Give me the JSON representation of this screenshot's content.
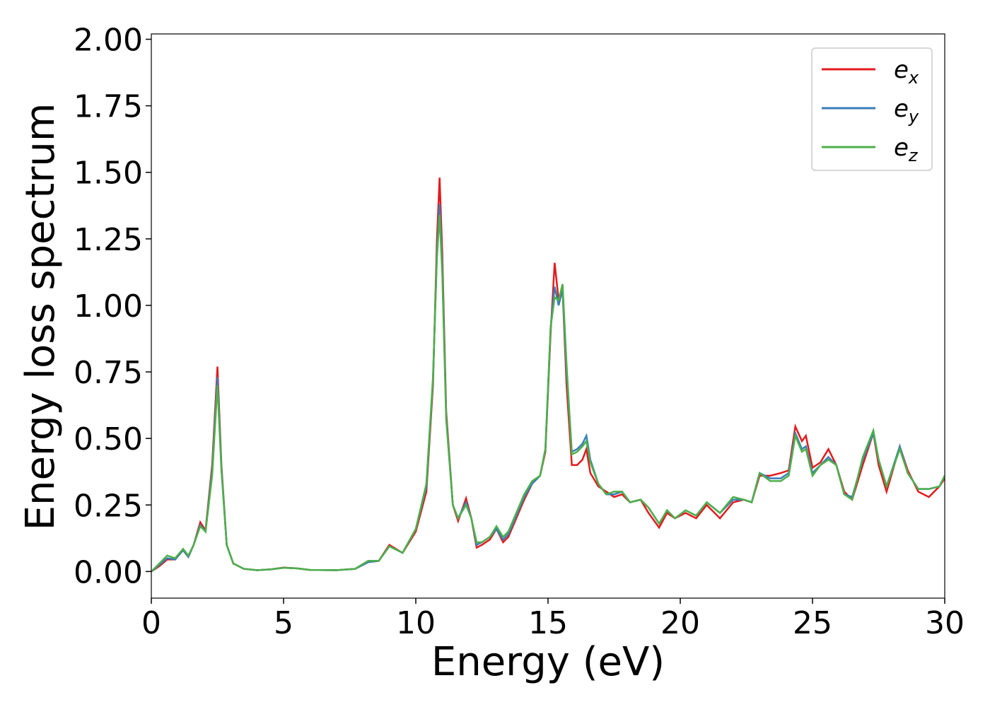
{
  "chart_data": {
    "type": "line",
    "x_label": "Energy (eV)",
    "y_label": "Energy loss spectrum",
    "xlim": [
      0,
      30
    ],
    "xticks": [
      0,
      5,
      10,
      15,
      20,
      25,
      30
    ],
    "ylim": [
      -0.1,
      2.02
    ],
    "yticks": [
      {
        "value": 0,
        "label": "0.00"
      },
      {
        "value": 0.25,
        "label": "0.25"
      },
      {
        "value": 0.5,
        "label": "0.50"
      },
      {
        "value": 0.75,
        "label": "0.75"
      },
      {
        "value": 1,
        "label": "1.00"
      },
      {
        "value": 1.25,
        "label": "1.25"
      },
      {
        "value": 1.5,
        "label": "1.50"
      },
      {
        "value": 1.75,
        "label": "1.75"
      },
      {
        "value": 2,
        "label": "2.00"
      }
    ],
    "legend": "upper right",
    "x": [
      0,
      0.3,
      0.6,
      0.9,
      1.2,
      1.4,
      1.6,
      1.85,
      2.05,
      2.3,
      2.5,
      2.65,
      2.85,
      3.1,
      3.5,
      4.0,
      4.5,
      5.0,
      5.5,
      6.0,
      7.0,
      7.7,
      8.2,
      8.6,
      9.0,
      9.5,
      10.0,
      10.4,
      10.65,
      10.8,
      10.9,
      11.0,
      11.15,
      11.4,
      11.6,
      11.9,
      12.1,
      12.3,
      12.5,
      12.8,
      13.05,
      13.3,
      13.5,
      13.8,
      14.1,
      14.4,
      14.7,
      14.9,
      15.1,
      15.25,
      15.4,
      15.55,
      15.7,
      15.9,
      16.1,
      16.3,
      16.45,
      16.6,
      16.9,
      17.2,
      17.5,
      17.8,
      18.1,
      18.5,
      18.8,
      19.2,
      19.5,
      19.8,
      20.2,
      20.6,
      21.0,
      21.5,
      22.0,
      22.4,
      22.7,
      23.0,
      23.4,
      23.8,
      24.1,
      24.35,
      24.6,
      24.75,
      25.0,
      25.3,
      25.6,
      25.9,
      26.2,
      26.5,
      26.9,
      27.3,
      27.5,
      27.8,
      28.3,
      28.6,
      29.0,
      29.4,
      29.8,
      30.0
    ],
    "series": [
      {
        "name": "ex",
        "color": "#e41a1c",
        "values": [
          0,
          0.02,
          0.045,
          0.045,
          0.08,
          0.055,
          0.1,
          0.185,
          0.155,
          0.4,
          0.77,
          0.4,
          0.1,
          0.03,
          0.01,
          0.005,
          0.008,
          0.015,
          0.012,
          0.006,
          0.005,
          0.01,
          0.035,
          0.04,
          0.1,
          0.07,
          0.15,
          0.3,
          0.7,
          1.25,
          1.48,
          1.2,
          0.6,
          0.25,
          0.19,
          0.275,
          0.2,
          0.09,
          0.1,
          0.12,
          0.16,
          0.11,
          0.13,
          0.2,
          0.27,
          0.33,
          0.36,
          0.45,
          0.9,
          1.16,
          1.02,
          1.06,
          0.7,
          0.4,
          0.4,
          0.42,
          0.46,
          0.37,
          0.32,
          0.3,
          0.28,
          0.29,
          0.26,
          0.27,
          0.22,
          0.165,
          0.22,
          0.2,
          0.22,
          0.2,
          0.25,
          0.2,
          0.26,
          0.27,
          0.26,
          0.36,
          0.36,
          0.37,
          0.38,
          0.545,
          0.49,
          0.51,
          0.39,
          0.41,
          0.46,
          0.4,
          0.3,
          0.27,
          0.4,
          0.52,
          0.4,
          0.3,
          0.47,
          0.38,
          0.3,
          0.28,
          0.32,
          0.35
        ]
      },
      {
        "name": "ey",
        "color": "#377eb8",
        "values": [
          0,
          0.025,
          0.05,
          0.045,
          0.08,
          0.055,
          0.1,
          0.175,
          0.15,
          0.38,
          0.73,
          0.39,
          0.1,
          0.03,
          0.01,
          0.005,
          0.008,
          0.014,
          0.012,
          0.006,
          0.005,
          0.01,
          0.035,
          0.04,
          0.095,
          0.07,
          0.16,
          0.32,
          0.72,
          1.2,
          1.38,
          1.15,
          0.58,
          0.25,
          0.2,
          0.26,
          0.2,
          0.1,
          0.11,
          0.13,
          0.16,
          0.12,
          0.14,
          0.21,
          0.28,
          0.33,
          0.36,
          0.46,
          0.92,
          1.07,
          1.0,
          1.06,
          0.75,
          0.45,
          0.46,
          0.48,
          0.51,
          0.42,
          0.33,
          0.29,
          0.29,
          0.3,
          0.26,
          0.27,
          0.24,
          0.18,
          0.23,
          0.2,
          0.23,
          0.21,
          0.26,
          0.22,
          0.27,
          0.27,
          0.26,
          0.37,
          0.35,
          0.35,
          0.37,
          0.52,
          0.46,
          0.47,
          0.37,
          0.4,
          0.43,
          0.4,
          0.29,
          0.28,
          0.42,
          0.52,
          0.42,
          0.32,
          0.47,
          0.37,
          0.31,
          0.31,
          0.32,
          0.36
        ]
      },
      {
        "name": "ez",
        "color": "#4daf4a",
        "values": [
          0,
          0.03,
          0.06,
          0.05,
          0.085,
          0.06,
          0.1,
          0.17,
          0.15,
          0.36,
          0.7,
          0.38,
          0.1,
          0.03,
          0.01,
          0.005,
          0.008,
          0.014,
          0.012,
          0.006,
          0.005,
          0.01,
          0.04,
          0.04,
          0.095,
          0.07,
          0.16,
          0.33,
          0.73,
          1.18,
          1.34,
          1.12,
          0.57,
          0.25,
          0.2,
          0.25,
          0.2,
          0.11,
          0.11,
          0.13,
          0.17,
          0.13,
          0.15,
          0.22,
          0.29,
          0.34,
          0.36,
          0.46,
          0.92,
          1.03,
          1.02,
          1.08,
          0.78,
          0.44,
          0.45,
          0.47,
          0.49,
          0.41,
          0.33,
          0.29,
          0.3,
          0.3,
          0.26,
          0.27,
          0.24,
          0.18,
          0.23,
          0.2,
          0.23,
          0.21,
          0.26,
          0.22,
          0.28,
          0.27,
          0.26,
          0.37,
          0.34,
          0.34,
          0.36,
          0.51,
          0.45,
          0.46,
          0.36,
          0.4,
          0.42,
          0.4,
          0.29,
          0.27,
          0.43,
          0.53,
          0.42,
          0.32,
          0.46,
          0.37,
          0.31,
          0.31,
          0.32,
          0.36
        ]
      }
    ]
  }
}
